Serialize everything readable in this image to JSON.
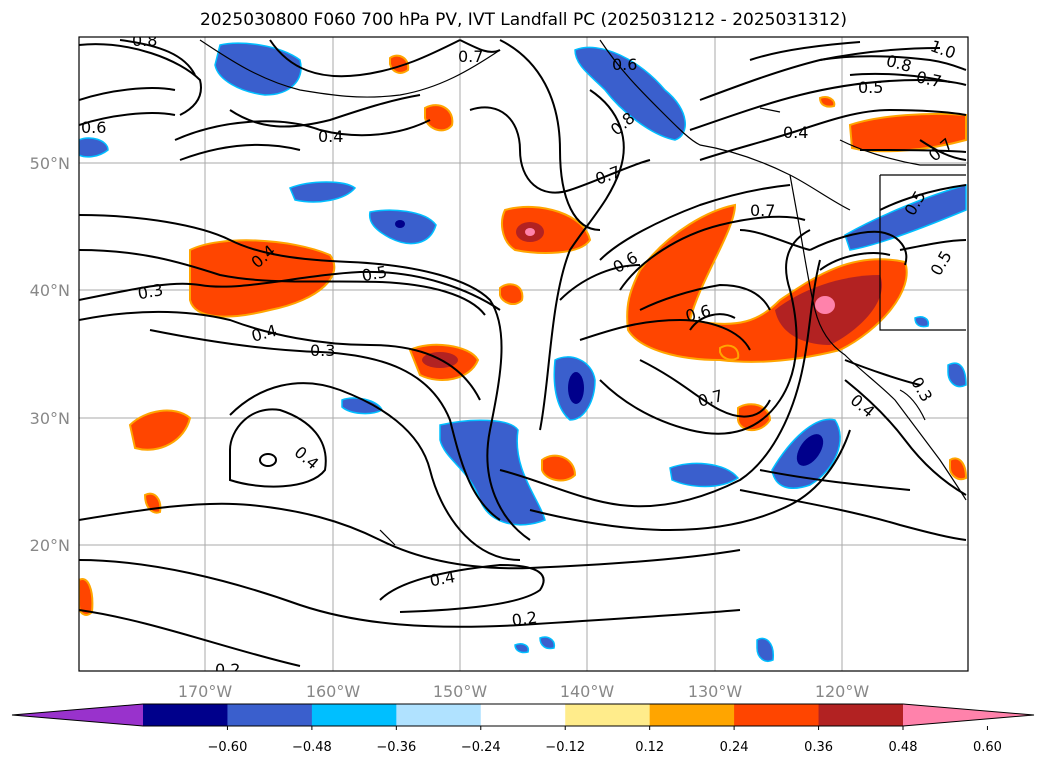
{
  "title": "2025030800 F060 700 hPa PV, IVT Landfall PC (2025031212 - 2025031312)",
  "lat_labels": [
    "50°N",
    "40°N",
    "30°N",
    "20°N"
  ],
  "lon_labels": [
    "170°W",
    "160°W",
    "150°W",
    "140°W",
    "130°W",
    "120°W"
  ],
  "contour_labels": [
    "0.8",
    "0.7",
    "0.6",
    "0.4",
    "0.6",
    "0.8",
    "1.0",
    "0.8",
    "0.7",
    "0.5",
    "0.4",
    "0.7",
    "0.7",
    "0.7",
    "0.5",
    "0.5",
    "0.4",
    "0.3",
    "0.5",
    "0.4",
    "0.3",
    "0.6",
    "0.6",
    "0.7",
    "0.4",
    "0.3",
    "0.4",
    "0.4",
    "0.2",
    "0.2"
  ],
  "colorbar": {
    "ticks": [
      "−0.60",
      "−0.48",
      "−0.36",
      "−0.24",
      "−0.12",
      "0.12",
      "0.24",
      "0.36",
      "0.48",
      "0.60"
    ],
    "colors": [
      "#9932cc",
      "#00008b",
      "#3a5fcd",
      "#00bfff",
      "#b0e2ff",
      "#ffffff",
      "#ffec8b",
      "#ffa500",
      "#ff4500",
      "#b22222",
      "#ff82ab"
    ]
  }
}
